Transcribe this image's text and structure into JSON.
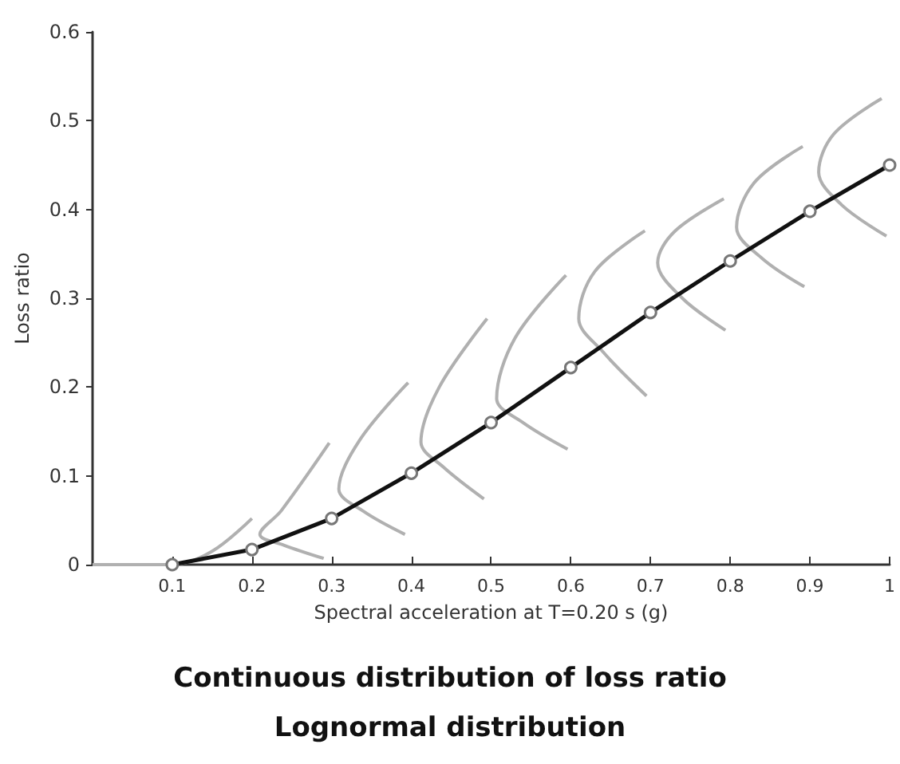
{
  "chart_data": {
    "type": "line",
    "title": "Continuous distribution of loss ratio",
    "subtitle": "Lognormal distribution",
    "xlabel": "Spectral acceleration at T=0.20 s (g)",
    "ylabel": "Loss ratio",
    "xlim": [
      0,
      1
    ],
    "xticks": [
      0.1,
      0.2,
      0.3,
      0.4,
      0.5,
      0.6,
      0.7,
      0.8,
      0.9,
      1
    ],
    "ylim": [
      0,
      0.6
    ],
    "yticks": [
      0,
      0.1,
      0.2,
      0.3,
      0.4,
      0.5,
      0.6
    ],
    "grid": false,
    "series": [
      {
        "color": "#b0b0b0",
        "marker": "none",
        "x": [
          0,
          0.1,
          0.15,
          0.2
        ],
        "values": [
          0,
          0,
          0.015,
          0.052
        ]
      },
      {
        "color": "#b0b0b0",
        "marker": "none",
        "x": [
          0.297,
          0.237,
          0.21,
          0.24,
          0.29
        ],
        "values": [
          0.137,
          0.061,
          0.034,
          0.022,
          0.007
        ]
      },
      {
        "color": "#b0b0b0",
        "marker": "none",
        "x": [
          0.396,
          0.335,
          0.309,
          0.34,
          0.392
        ],
        "values": [
          0.205,
          0.14,
          0.085,
          0.06,
          0.034
        ]
      },
      {
        "color": "#b0b0b0",
        "marker": "none",
        "x": [
          0.495,
          0.435,
          0.412,
          0.44,
          0.491
        ],
        "values": [
          0.277,
          0.2,
          0.138,
          0.11,
          0.074
        ]
      },
      {
        "color": "#b0b0b0",
        "marker": "none",
        "x": [
          0.594,
          0.53,
          0.507,
          0.54,
          0.596
        ],
        "values": [
          0.326,
          0.255,
          0.187,
          0.16,
          0.13
        ]
      },
      {
        "color": "#b0b0b0",
        "marker": "none",
        "x": [
          0.693,
          0.63,
          0.61,
          0.64,
          0.695
        ],
        "values": [
          0.376,
          0.33,
          0.277,
          0.24,
          0.19
        ]
      },
      {
        "color": "#b0b0b0",
        "marker": "none",
        "x": [
          0.792,
          0.73,
          0.709,
          0.74,
          0.794
        ],
        "values": [
          0.412,
          0.375,
          0.34,
          0.3,
          0.264
        ]
      },
      {
        "color": "#b0b0b0",
        "marker": "none",
        "x": [
          0.891,
          0.83,
          0.808,
          0.84,
          0.893
        ],
        "values": [
          0.471,
          0.43,
          0.38,
          0.345,
          0.313
        ]
      },
      {
        "color": "#b0b0b0",
        "marker": "none",
        "x": [
          0.99,
          0.93,
          0.911,
          0.94,
          0.996
        ],
        "values": [
          0.525,
          0.485,
          0.442,
          0.405,
          0.37
        ]
      },
      {
        "color": "#111111",
        "marker": "circle",
        "x": [
          0.1,
          0.2,
          0.3,
          0.4,
          0.5,
          0.6,
          0.7,
          0.8,
          0.9,
          1
        ],
        "values": [
          0,
          0.017,
          0.052,
          0.103,
          0.16,
          0.222,
          0.284,
          0.342,
          0.398,
          0.45
        ]
      }
    ]
  }
}
